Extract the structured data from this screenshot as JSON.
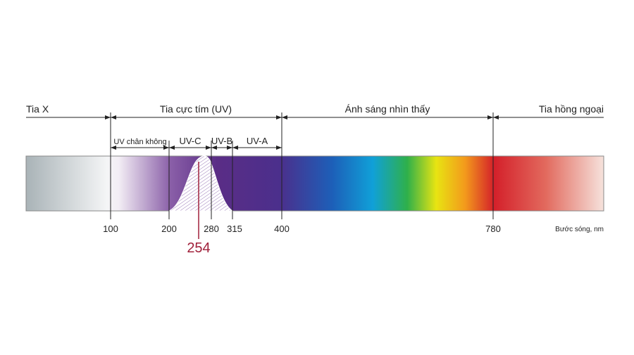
{
  "regions": [
    "Tia X",
    "Tia cực tím (UV)",
    "Ánh sáng nhìn thấy",
    "Tia hồng ngoại"
  ],
  "uv_bands": [
    "UV chân không",
    "UV-C",
    "UV-B",
    "UV-A"
  ],
  "ticks": [
    100,
    200,
    280,
    315,
    400,
    780
  ],
  "axis_label": "Bước sóng, nm",
  "highlight": 254
}
